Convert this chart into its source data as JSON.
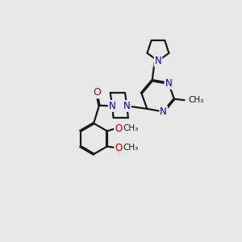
{
  "bg_color": "#e8e8e8",
  "bond_color": "#1a1a1a",
  "N_color": "#0000cc",
  "O_color": "#cc0000",
  "line_width": 1.6,
  "fig_width": 3.0,
  "fig_height": 3.0,
  "xlim": [
    0,
    10
  ],
  "ylim": [
    0,
    10
  ]
}
